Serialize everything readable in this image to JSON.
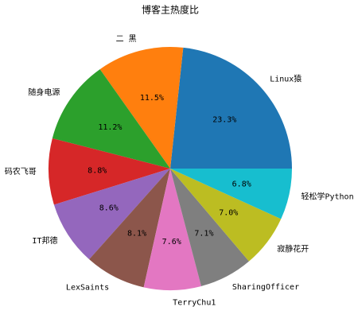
{
  "chart_data": {
    "type": "pie",
    "title": "博客主热度比",
    "categories": [
      "Linux猿",
      "二 黑",
      "随身电源",
      "码农飞哥",
      "IT邦德",
      "LexSaints",
      "TerryChu1",
      "SharingOfficer",
      "寂静花开",
      "轻松学Python"
    ],
    "values": [
      23.3,
      11.5,
      11.2,
      8.8,
      8.6,
      8.1,
      7.6,
      7.1,
      7.0,
      6.8
    ],
    "value_labels": [
      "23.3%",
      "11.5%",
      "11.2%",
      "8.8%",
      "8.6%",
      "8.1%",
      "7.6%",
      "7.1%",
      "7.0%",
      "6.8%"
    ],
    "colors": [
      "#1f77b4",
      "#ff7f0e",
      "#2ca02c",
      "#d62728",
      "#9467bd",
      "#8c564b",
      "#e377c2",
      "#7f7f7f",
      "#bcbd22",
      "#17becf"
    ]
  }
}
